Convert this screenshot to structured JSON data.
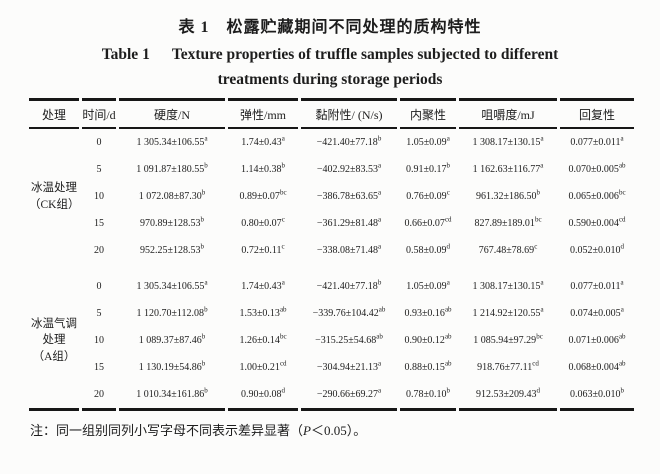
{
  "title_cn": "表 1　松露贮藏期间不同处理的质构特性",
  "title_en": {
    "label": "Table 1",
    "line1": "Texture properties of truffle samples subjected to different",
    "line2": "treatments during storage periods"
  },
  "table": {
    "headers": [
      "处理",
      "时间/d",
      "硬度/N",
      "弹性/mm",
      "黏附性/ (N/s)",
      "内聚性",
      "咀嚼度/mJ",
      "回复性"
    ],
    "groups": [
      {
        "label_lines": [
          "冰温处理",
          "（CK组）"
        ],
        "rows": [
          {
            "time": "0",
            "cells": [
              "1 305.34±106.55^a",
              "1.74±0.43^a",
              "−421.40±77.18^b",
              "1.05±0.09^a",
              "1 308.17±130.15^a",
              "0.077±0.011^a"
            ]
          },
          {
            "time": "5",
            "cells": [
              "1 091.87±180.55^b",
              "1.14±0.38^b",
              "−402.92±83.53^a",
              "0.91±0.17^b",
              "1 162.63±116.77^a",
              "0.070±0.005^ab"
            ]
          },
          {
            "time": "10",
            "cells": [
              "1 072.08±87.30^b",
              "0.89±0.07^bc",
              "−386.78±63.65^a",
              "0.76±0.09^c",
              "961.32±186.50^b",
              "0.065±0.006^bc"
            ]
          },
          {
            "time": "15",
            "cells": [
              "970.89±128.53^b",
              "0.80±0.07^c",
              "−361.29±81.48^a",
              "0.66±0.07^cd",
              "827.89±189.01^bc",
              "0.590±0.004^cd"
            ]
          },
          {
            "time": "20",
            "cells": [
              "952.25±128.53^b",
              "0.72±0.11^c",
              "−338.08±71.48^a",
              "0.58±0.09^d",
              "767.48±78.69^c",
              "0.052±0.010^d"
            ]
          }
        ]
      },
      {
        "label_lines": [
          "冰温气调",
          "处理",
          "（A组）"
        ],
        "rows": [
          {
            "time": "0",
            "cells": [
              "1 305.34±106.55^a",
              "1.74±0.43^a",
              "−421.40±77.18^b",
              "1.05±0.09^a",
              "1 308.17±130.15^a",
              "0.077±0.011^a"
            ]
          },
          {
            "time": "5",
            "cells": [
              "1 120.70±112.08^b",
              "1.53±0.13^ab",
              "−339.76±104.42^ab",
              "0.93±0.16^ab",
              "1 214.92±120.55^a",
              "0.074±0.005^a"
            ]
          },
          {
            "time": "10",
            "cells": [
              "1 089.37±87.46^b",
              "1.26±0.14^bc",
              "−315.25±54.68^ab",
              "0.90±0.12^ab",
              "1 085.94±97.29^bc",
              "0.071±0.006^ab"
            ]
          },
          {
            "time": "15",
            "cells": [
              "1 130.19±54.86^b",
              "1.00±0.21^cd",
              "−304.94±21.13^a",
              "0.88±0.15^ab",
              "918.76±77.11^cd",
              "0.068±0.004^ab"
            ]
          },
          {
            "time": "20",
            "cells": [
              "1 010.34±161.86^b",
              "0.90±0.08^d",
              "−290.66±69.27^a",
              "0.78±0.10^b",
              "912.53±209.43^d",
              "0.063±0.010^b"
            ]
          }
        ]
      }
    ]
  },
  "footnote": {
    "prefix": "注：同一组别同列小写字母不同表示差异显著（",
    "italic": "P",
    "suffix": "＜0.05）。"
  }
}
